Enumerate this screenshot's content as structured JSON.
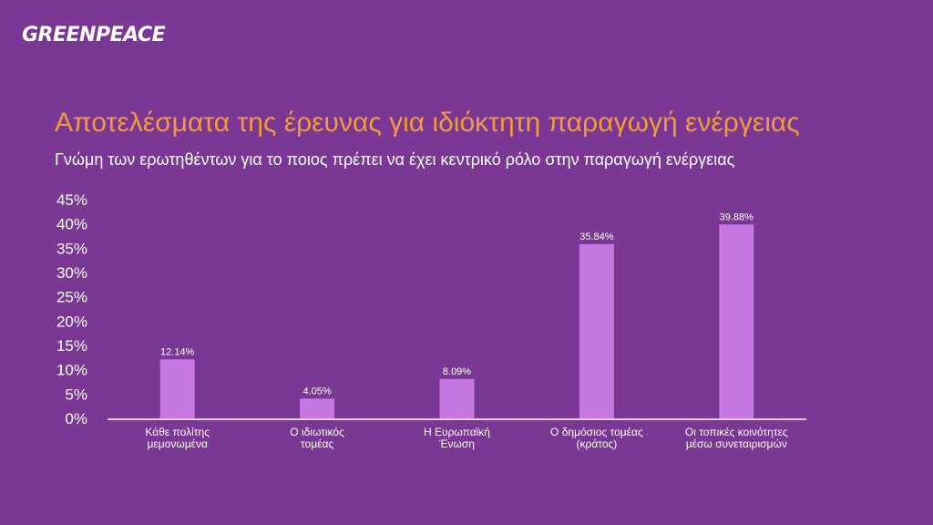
{
  "logo": "GREENPEACE",
  "colors": {
    "background": "#7a3794",
    "bar": "#c678e2",
    "title": "#f39a3c",
    "axis": "#ffffff"
  },
  "chart_data": {
    "type": "bar",
    "title": "Αποτελέσματα της έρευνας για ιδιόκτητη παραγωγή ενέργειας",
    "subtitle": "Γνώμη των ερωτηθέντων για το ποιος πρέπει να έχει κεντρικό ρόλο στην παραγωγή ενέργειας",
    "categories": [
      [
        "Κάθε πολίτης",
        "μεμονωμένα"
      ],
      [
        "Ο ιδιωτικός",
        "τομέας"
      ],
      [
        "Η Ευρωπαϊκή",
        "Ένωση"
      ],
      [
        "Ο δημόσιος τομέας",
        "(κράτος)"
      ],
      [
        "Οι τοπικές κοινότητες",
        "μέσω συνεταιρισμών"
      ]
    ],
    "values": [
      12.14,
      4.05,
      8.09,
      35.84,
      39.88
    ],
    "value_labels": [
      "12.14%",
      "4.05%",
      "8.09%",
      "35.84%",
      "39.88%"
    ],
    "ylim": [
      0,
      45
    ],
    "yticks": [
      "0%",
      "5%",
      "10%",
      "15%",
      "20%",
      "25%",
      "30%",
      "35%",
      "40%",
      "45%"
    ],
    "grid": false,
    "legend": "none"
  }
}
